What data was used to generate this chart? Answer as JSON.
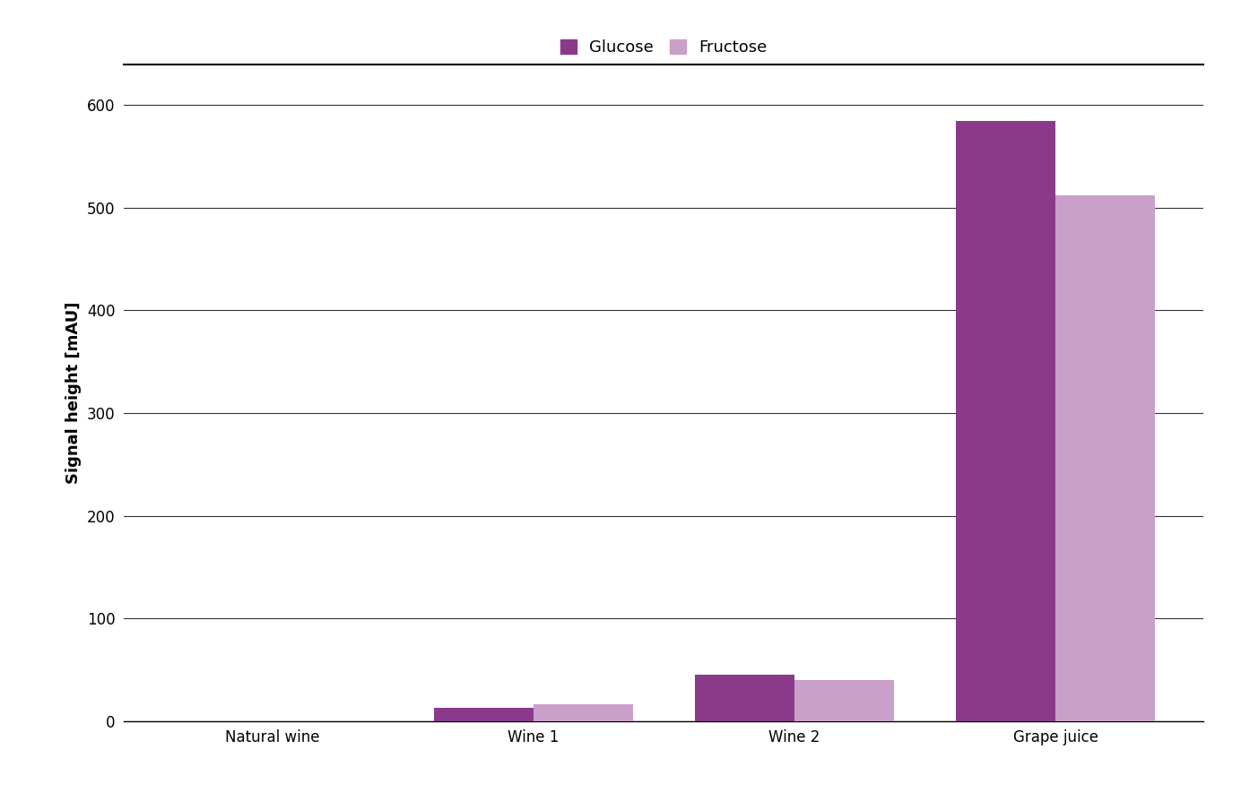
{
  "categories": [
    "Natural wine",
    "Wine 1",
    "Wine 2",
    "Grape juice"
  ],
  "glucose_values": [
    0,
    13,
    45,
    585
  ],
  "fructose_values": [
    0,
    16,
    40,
    512
  ],
  "glucose_color": "#8B3A8B",
  "fructose_color": "#C9A0C9",
  "ylabel": "Signal height [mAU]",
  "ylim": [
    0,
    640
  ],
  "yticks": [
    0,
    100,
    200,
    300,
    400,
    500,
    600
  ],
  "legend_labels": [
    "Glucose",
    "Fructose"
  ],
  "bar_width": 0.38,
  "background_color": "#ffffff",
  "grid_color": "#333333",
  "axis_fontsize": 13,
  "tick_fontsize": 12,
  "legend_fontsize": 13
}
